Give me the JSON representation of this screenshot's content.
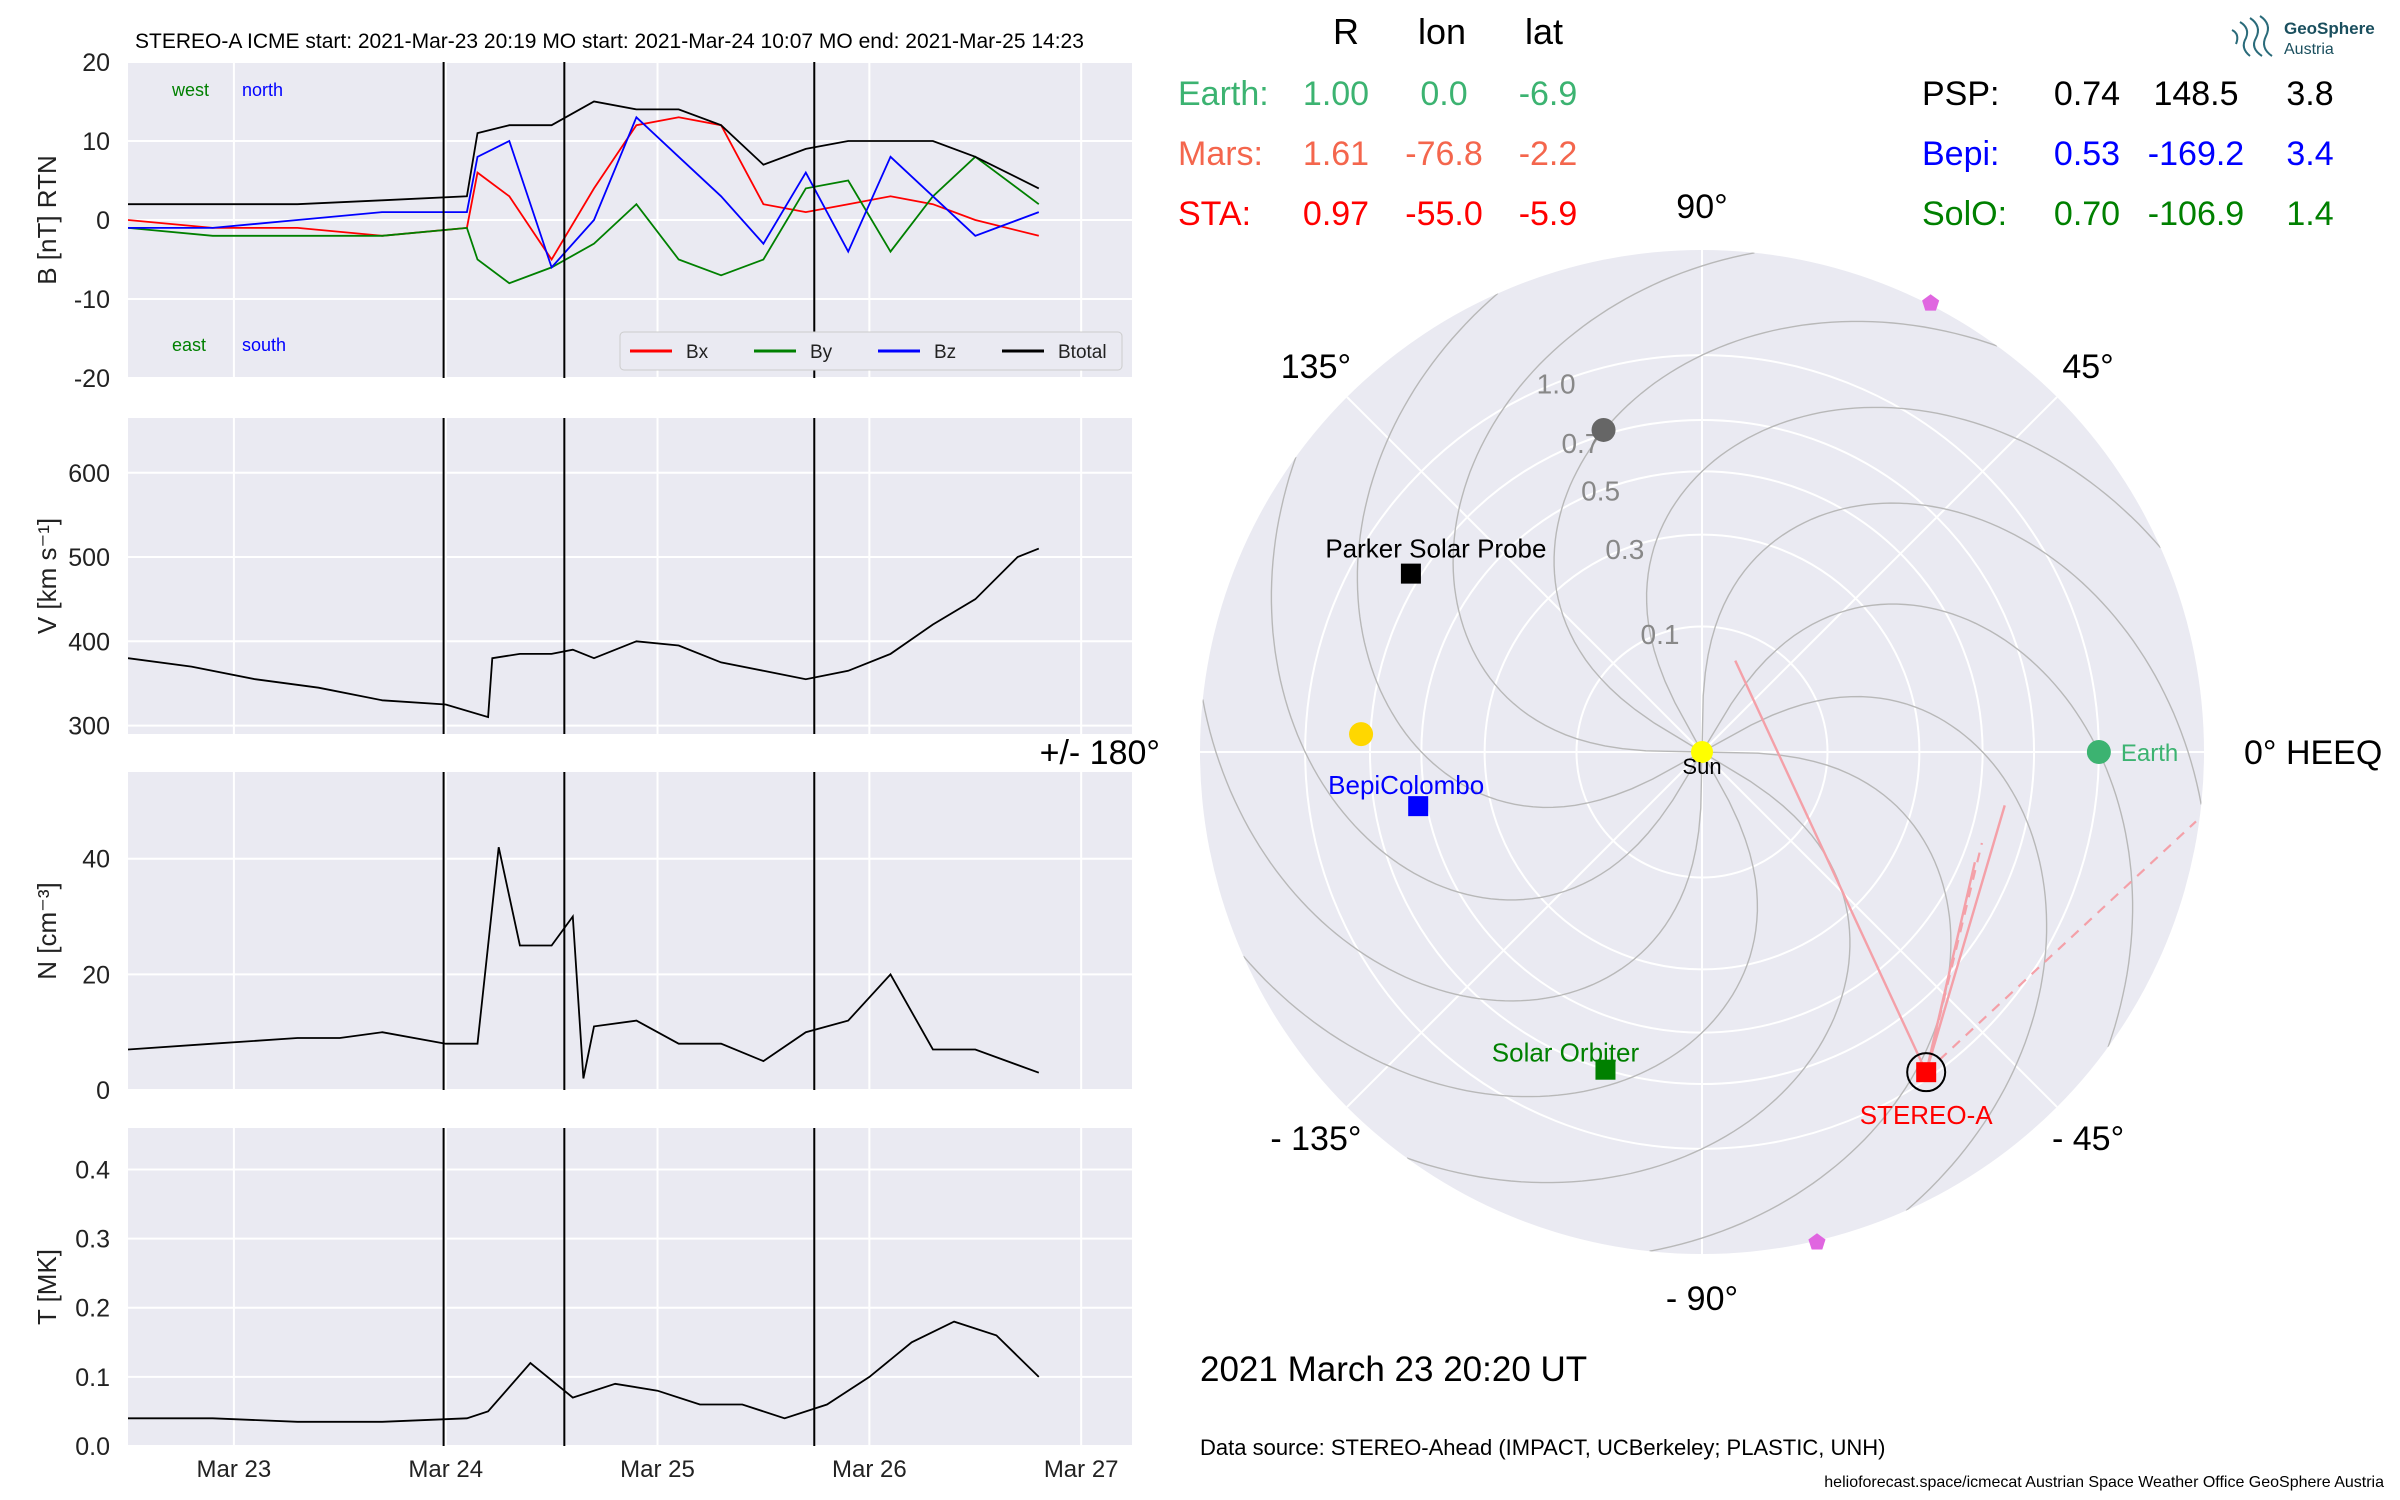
{
  "header": {
    "event_title": "STEREO-A    ICME start: 2021-Mar-23 20:19    MO start: 2021-Mar-24 10:07    MO end: 2021-Mar-25 14:23"
  },
  "annotations": {
    "west": "west",
    "north": "north",
    "east": "east",
    "south": "south"
  },
  "colors": {
    "panel_bg": "#eaeaf2",
    "grid": "#ffffff",
    "bx": "#ff0000",
    "by": "#008000",
    "bz": "#0000ff",
    "btotal": "#000000",
    "earth": "#3cb371",
    "mars": "#f4664d",
    "sta": "#ff0000",
    "psp": "#000000",
    "bepi": "#0000ff",
    "solo": "#008000",
    "venus": "#666666",
    "mercury": "#ffd700",
    "sun": "#ffff00",
    "magenta": "#e066e0"
  },
  "chart_data": [
    {
      "id": "b",
      "type": "line",
      "ylabel": "B [nT] RTN",
      "ylim": [
        -20,
        20
      ],
      "yticks": [
        -20,
        -10,
        0,
        10,
        20
      ],
      "series": [
        {
          "name": "Bx",
          "color": "#ff0000",
          "x": [
            0,
            0.4,
            0.8,
            1.2,
            1.6,
            1.65,
            1.8,
            2.0,
            2.2,
            2.4,
            2.6,
            2.8,
            3.0,
            3.2,
            3.4,
            3.6,
            3.8,
            4.0,
            4.3
          ],
          "y": [
            0,
            -1,
            -1,
            -2,
            -1,
            6,
            3,
            -5,
            4,
            12,
            13,
            12,
            2,
            1,
            2,
            3,
            2,
            0,
            -2
          ]
        },
        {
          "name": "By",
          "color": "#008000",
          "x": [
            0,
            0.4,
            0.8,
            1.2,
            1.6,
            1.65,
            1.8,
            2.0,
            2.2,
            2.4,
            2.6,
            2.8,
            3.0,
            3.2,
            3.4,
            3.6,
            3.8,
            4.0,
            4.3
          ],
          "y": [
            -1,
            -2,
            -2,
            -2,
            -1,
            -5,
            -8,
            -6,
            -3,
            2,
            -5,
            -7,
            -5,
            4,
            5,
            -4,
            3,
            8,
            2
          ]
        },
        {
          "name": "Bz",
          "color": "#0000ff",
          "x": [
            0,
            0.4,
            0.8,
            1.2,
            1.6,
            1.65,
            1.8,
            2.0,
            2.2,
            2.4,
            2.6,
            2.8,
            3.0,
            3.2,
            3.4,
            3.6,
            3.8,
            4.0,
            4.3
          ],
          "y": [
            -1,
            -1,
            0,
            1,
            1,
            8,
            10,
            -6,
            0,
            13,
            8,
            3,
            -3,
            6,
            -4,
            8,
            3,
            -2,
            1
          ]
        },
        {
          "name": "Btotal",
          "color": "#000000",
          "x": [
            0,
            0.4,
            0.8,
            1.2,
            1.6,
            1.65,
            1.8,
            2.0,
            2.2,
            2.4,
            2.6,
            2.8,
            3.0,
            3.2,
            3.4,
            3.6,
            3.8,
            4.0,
            4.3
          ],
          "y": [
            2,
            2,
            2,
            2.5,
            3,
            11,
            12,
            12,
            15,
            14,
            14,
            12,
            7,
            9,
            10,
            10,
            10,
            8,
            4
          ]
        }
      ],
      "legend": "lower-right"
    },
    {
      "id": "v",
      "type": "line",
      "ylabel": "V [km s⁻¹]",
      "ylim": [
        290,
        665
      ],
      "yticks": [
        300,
        400,
        500,
        600
      ],
      "series": [
        {
          "name": "",
          "color": "#000000",
          "x": [
            0,
            0.3,
            0.6,
            0.9,
            1.2,
            1.5,
            1.7,
            1.72,
            1.85,
            2.0,
            2.1,
            2.2,
            2.4,
            2.6,
            2.8,
            3.0,
            3.2,
            3.4,
            3.6,
            3.8,
            4.0,
            4.2,
            4.3
          ],
          "y": [
            380,
            370,
            355,
            345,
            330,
            325,
            310,
            380,
            385,
            385,
            390,
            380,
            400,
            395,
            375,
            365,
            355,
            365,
            385,
            420,
            450,
            500,
            510
          ]
        }
      ]
    },
    {
      "id": "n",
      "type": "line",
      "ylabel": "N [cm⁻³]",
      "ylim": [
        0,
        55
      ],
      "yticks": [
        0,
        20,
        40
      ],
      "series": [
        {
          "name": "",
          "color": "#000000",
          "x": [
            0,
            0.4,
            0.8,
            1.0,
            1.2,
            1.5,
            1.65,
            1.75,
            1.85,
            2.0,
            2.1,
            2.15,
            2.2,
            2.4,
            2.6,
            2.8,
            3.0,
            3.2,
            3.4,
            3.6,
            3.8,
            4.0,
            4.3
          ],
          "y": [
            7,
            8,
            9,
            9,
            10,
            8,
            8,
            42,
            25,
            25,
            30,
            2,
            11,
            12,
            8,
            8,
            5,
            10,
            12,
            20,
            7,
            7,
            3
          ]
        }
      ]
    },
    {
      "id": "t",
      "type": "line",
      "ylabel": "T [MK]",
      "ylim": [
        0,
        0.46
      ],
      "yticks": [
        0.0,
        0.1,
        0.2,
        0.3,
        0.4
      ],
      "series": [
        {
          "name": "",
          "color": "#000000",
          "x": [
            0,
            0.4,
            0.8,
            1.2,
            1.6,
            1.7,
            1.9,
            2.1,
            2.3,
            2.5,
            2.7,
            2.9,
            3.1,
            3.3,
            3.5,
            3.7,
            3.9,
            4.1,
            4.3
          ],
          "y": [
            0.04,
            0.04,
            0.035,
            0.035,
            0.04,
            0.05,
            0.12,
            0.07,
            0.09,
            0.08,
            0.06,
            0.06,
            0.04,
            0.06,
            0.1,
            0.15,
            0.18,
            0.16,
            0.1
          ]
        }
      ]
    }
  ],
  "time_axis": {
    "ticks": [
      {
        "x": 0.5,
        "label": "Mar 23"
      },
      {
        "x": 1.5,
        "label": "Mar 24"
      },
      {
        "x": 2.5,
        "label": "Mar 25"
      },
      {
        "x": 3.5,
        "label": "Mar 26"
      },
      {
        "x": 4.5,
        "label": "Mar 27"
      }
    ],
    "xlim": [
      0.0,
      4.74
    ],
    "event_lines": [
      1.49,
      2.06,
      3.24
    ]
  },
  "table": {
    "headers": [
      "R",
      "lon",
      "lat"
    ],
    "left_rows": [
      {
        "name": "Earth:",
        "r": "1.00",
        "lon": "0.0",
        "lat": "-6.9",
        "color": "#3cb371"
      },
      {
        "name": "Mars:",
        "r": "1.61",
        "lon": "-76.8",
        "lat": "-2.2",
        "color": "#f4664d"
      },
      {
        "name": "STA:",
        "r": "0.97",
        "lon": "-55.0",
        "lat": "-5.9",
        "color": "#ff0000"
      }
    ],
    "right_rows": [
      {
        "name": "PSP:",
        "r": "0.74",
        "lon": "148.5",
        "lat": "3.8",
        "color": "#000000"
      },
      {
        "name": "Bepi:",
        "r": "0.53",
        "lon": "-169.2",
        "lat": "3.4",
        "color": "#0000ff"
      },
      {
        "name": "SolO:",
        "r": "0.70",
        "lon": "-106.9",
        "lat": "1.4",
        "color": "#008000"
      }
    ]
  },
  "polar": {
    "type": "scatter",
    "rmax": 1.6,
    "r_ticks": [
      {
        "r": 0.1,
        "label": "0.1"
      },
      {
        "r": 0.3,
        "label": "0.3"
      },
      {
        "r": 0.5,
        "label": "0.5"
      },
      {
        "r": 0.7,
        "label": "0.7"
      },
      {
        "r": 1.0,
        "label": "1.0"
      }
    ],
    "angle_labels": [
      {
        "deg": 90,
        "label": "90°"
      },
      {
        "deg": 45,
        "label": "45°"
      },
      {
        "deg": 0,
        "label": "0° HEEQ"
      },
      {
        "deg": -45,
        "label": "- 45°"
      },
      {
        "deg": -90,
        "label": "- 90°"
      },
      {
        "deg": -135,
        "label": "- 135°"
      },
      {
        "deg": 180,
        "label": "+/- 180°"
      },
      {
        "deg": 135,
        "label": "135°"
      }
    ],
    "objects": [
      {
        "name": "Earth",
        "label": "Earth",
        "r": 1.0,
        "lon": 0.0,
        "marker": "circle",
        "color": "#3cb371"
      },
      {
        "name": "STEREO-A",
        "label": "STEREO-A",
        "r": 0.97,
        "lon": -55.0,
        "marker": "square",
        "color": "#ff0000"
      },
      {
        "name": "Parker Solar Probe",
        "label": "Parker Solar Probe",
        "r": 0.74,
        "lon": 148.5,
        "marker": "square",
        "color": "#000000"
      },
      {
        "name": "BepiColombo",
        "label": "BepiColombo",
        "r": 0.53,
        "lon": -169.2,
        "marker": "square",
        "color": "#0000ff"
      },
      {
        "name": "Solar Orbiter",
        "label": "Solar Orbiter",
        "r": 0.7,
        "lon": -106.9,
        "marker": "square",
        "color": "#008000"
      },
      {
        "name": "Sun",
        "label": "Sun",
        "r": 0.0,
        "lon": 0.0,
        "marker": "circle",
        "color": "#ffff00"
      },
      {
        "name": "venus",
        "label": "",
        "r": 0.72,
        "lon": 107.0,
        "marker": "circle",
        "color": "#666666"
      },
      {
        "name": "mercury",
        "label": "",
        "r": 0.74,
        "lon": 177.0,
        "marker": "circle",
        "color": "#ffd700"
      },
      {
        "name": "mars",
        "label": "",
        "r": 1.61,
        "lon": -76.8,
        "marker": "pentagon",
        "color": "#e066e0"
      },
      {
        "name": "jupiter",
        "label": "",
        "r": 1.61,
        "lon": 63.0,
        "marker": "pentagon",
        "color": "#e066e0"
      }
    ]
  },
  "footer": {
    "datetime": "2021 March 23  20:20 UT",
    "source": "Data source: STEREO-Ahead (IMPACT, UCBerkeley; PLASTIC, UNH)",
    "credits": "helioforecast.space/icmecat   Austrian Space Weather Office   GeoSphere Austria"
  },
  "logo": {
    "line1": "GeoSphere",
    "line2": "Austria"
  }
}
